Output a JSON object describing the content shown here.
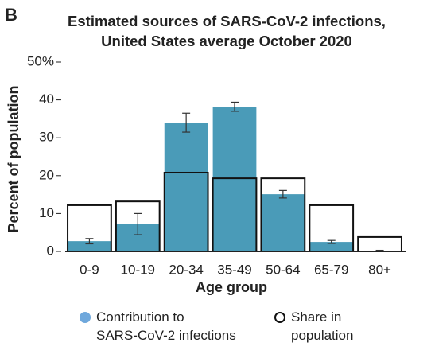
{
  "panel_label": "B",
  "chart_data": {
    "type": "bar",
    "title": "Estimated sources of SARS-CoV-2 infections,\nUnited States average October 2020",
    "x_label": "Age group",
    "y_label": "Percent of population",
    "categories": [
      "0-9",
      "10-19",
      "20-34",
      "35-49",
      "50-64",
      "65-79",
      "80+"
    ],
    "series": [
      {
        "name": "Contribution to\nSARS-CoV-2 infections",
        "color": "#4a9bb8",
        "legend_color": "#6fa8dc",
        "style": "filled",
        "values": [
          2.7,
          7.2,
          34.0,
          38.2,
          15.1,
          2.5,
          0.2
        ],
        "errors": [
          0.7,
          2.8,
          2.5,
          1.2,
          1.0,
          0.4,
          0.1
        ]
      },
      {
        "name": "Share in\npopulation",
        "color": "#111111",
        "style": "outline",
        "values": [
          12.2,
          13.2,
          20.8,
          19.3,
          19.3,
          12.2,
          3.8
        ]
      }
    ],
    "ylim": [
      0,
      50
    ],
    "yticks": [
      0,
      10,
      20,
      30,
      40,
      {
        "value": 50,
        "label": "50%"
      }
    ],
    "grid": false
  }
}
